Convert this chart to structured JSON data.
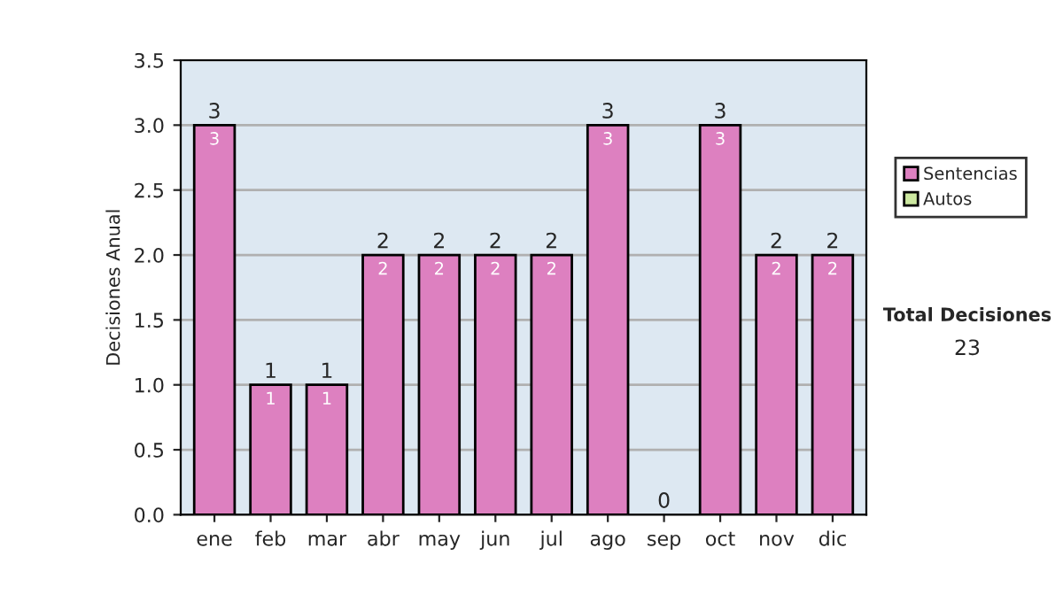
{
  "chart_data": {
    "type": "bar",
    "stacked": true,
    "ylabel": "Decisiones Anual",
    "categories": [
      "ene",
      "feb",
      "mar",
      "abr",
      "may",
      "jun",
      "jul",
      "ago",
      "sep",
      "oct",
      "nov",
      "dic"
    ],
    "series": [
      {
        "name": "Sentencias",
        "color": "#dd80c0",
        "values": [
          3,
          1,
          1,
          2,
          2,
          2,
          2,
          3,
          0,
          3,
          2,
          2
        ],
        "value_labels": [
          "3",
          "1",
          "1",
          "2",
          "2",
          "2",
          "2",
          "3",
          null,
          "3",
          "2",
          "2"
        ]
      },
      {
        "name": "Autos",
        "color": "#cce8a0",
        "values": [
          0,
          0,
          0,
          0,
          0,
          0,
          0,
          0,
          0,
          0,
          0,
          0
        ]
      }
    ],
    "totals": [
      "3",
      "1",
      "1",
      "2",
      "2",
      "2",
      "2",
      "3",
      "0",
      "3",
      "2",
      "2"
    ],
    "ylim": [
      0,
      3.5
    ],
    "yticks": [
      "0.0",
      "0.5",
      "1.0",
      "1.5",
      "2.0",
      "2.5",
      "3.0",
      "3.5"
    ],
    "grid": "y",
    "legend": "right",
    "annotations": [
      "Total Decisiones",
      "23"
    ]
  }
}
